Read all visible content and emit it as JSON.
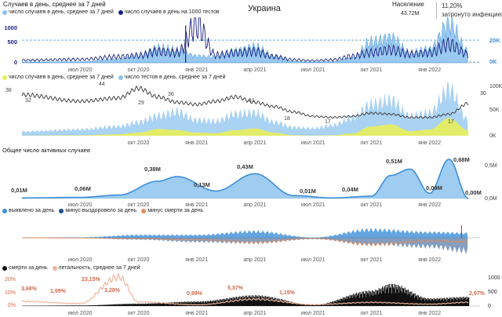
{
  "header": {
    "title": "Случаев в день, среднее за 7 дней",
    "country": "Украина",
    "population_label": "Население",
    "population_value": "43.72M",
    "infected_percent": "11,20%",
    "infected_label": "затронуто инфекцией"
  },
  "legends": {
    "chart1": [
      "число случаев в день, среднее за 7 дней",
      "число случаев в день на 1000 тестов"
    ],
    "chart2": [
      "число случаев в день, среднее за 7 дней",
      "число тестов в день, среднее за 7 дней"
    ],
    "chart3_title": "Общее число активных случаев",
    "chart4": [
      "выявлено за день",
      "минус выздоровело за день",
      "минус смерти за день"
    ],
    "chart5": [
      "смерти за день",
      "летальность, среднее за 7 дней"
    ]
  },
  "colors": {
    "light_blue": "#8ec3ef",
    "medium_blue": "#3d8fd9",
    "dark_navy": "#1a237e",
    "dark_gray_line": "#333333",
    "yellow_green": "#e8ee5a",
    "orange": "#e58a5a",
    "peach": "#f0b59a",
    "dashed_blue": "#3d8fd9",
    "black": "#111111"
  },
  "chart_data": [
    {
      "type": "area",
      "title": "Случаев в день, среднее за 7 дней",
      "x_ticks": [
        "июл 2020",
        "окт 2020",
        "янв 2021",
        "апр 2021",
        "июл 2021",
        "окт 2021",
        "янв 2022"
      ],
      "left_axis_ticks": [
        "1000",
        "500",
        "0"
      ],
      "right_axis_ticks": [
        "20K",
        "0K"
      ],
      "series": [
        {
          "name": "число случаев в день, среднее за 7 дней",
          "x": [
            "апр 2020",
            "июл 2020",
            "сен 2020",
            "окт 2020",
            "ноя 2020",
            "дек 2020",
            "янв 2021",
            "фев 2021",
            "мар 2021",
            "апр 2021",
            "май 2021",
            "июн 2021",
            "июл 2021",
            "авг 2021",
            "сен 2021",
            "окт 2021",
            "ноя 2021",
            "дек 2021",
            "янв 2022",
            "фев 2022",
            "мар 2022"
          ],
          "values": [
            400,
            900,
            3000,
            6000,
            13000,
            11000,
            6000,
            5000,
            11000,
            14000,
            6000,
            1000,
            500,
            1000,
            4000,
            18000,
            22000,
            9000,
            12000,
            34000,
            10000
          ]
        },
        {
          "name": "число случаев в день на 1000 тестов",
          "x": [
            "апр 2020",
            "июл 2020",
            "сен 2020",
            "окт 2020",
            "ноя 2020",
            "дек 2020",
            "янв 2021",
            "фев 2021",
            "мар 2021",
            "апр 2021",
            "май 2021",
            "июн 2021",
            "июл 2021",
            "авг 2021",
            "сен 2021",
            "окт 2021",
            "ноя 2021",
            "дек 2021",
            "янв 2022",
            "фев 2022",
            "мар 2022"
          ],
          "values": [
            60,
            80,
            140,
            170,
            260,
            230,
            880,
            180,
            230,
            260,
            140,
            70,
            50,
            70,
            150,
            240,
            300,
            200,
            230,
            430,
            200
          ]
        }
      ],
      "reference_lines": [
        {
          "value": 20000,
          "axis": "right"
        },
        {
          "value": 0,
          "axis": "right"
        }
      ]
    },
    {
      "type": "area",
      "title": "",
      "right_axis_ticks": [
        "100K",
        "50K",
        "0K"
      ],
      "x_ticks": [
        "окт 2020",
        "янв 2021",
        "апр 2021",
        "июл 2021",
        "окт 2021",
        "янв 2022"
      ],
      "annotations": [
        "38",
        "32",
        "44",
        "29",
        "36",
        "31",
        "18",
        "17",
        "17",
        "30"
      ],
      "series": [
        {
          "name": "число тестов в день, среднее за 7 дней",
          "x": [
            "апр 2020",
            "июл 2020",
            "сен 2020",
            "окт 2020",
            "ноя 2020",
            "дек 2020",
            "янв 2021",
            "фев 2021",
            "мар 2021",
            "апр 2021",
            "май 2021",
            "июн 2021",
            "июл 2021",
            "авг 2021",
            "сен 2021",
            "окт 2021",
            "ноя 2021",
            "дек 2021",
            "янв 2022",
            "фев 2022",
            "мар 2022"
          ],
          "values": [
            8000,
            12000,
            18000,
            26000,
            38000,
            46000,
            30000,
            28000,
            42000,
            44000,
            26000,
            16000,
            14000,
            20000,
            34000,
            60000,
            68000,
            38000,
            44000,
            90000,
            30000
          ]
        },
        {
          "name": "число случаев в день, среднее за 7 дней",
          "x": [
            "апр 2020",
            "июл 2020",
            "сен 2020",
            "окт 2020",
            "ноя 2020",
            "дек 2020",
            "янв 2021",
            "фев 2021",
            "мар 2021",
            "апр 2021",
            "май 2021",
            "июн 2021",
            "июл 2021",
            "авг 2021",
            "сен 2021",
            "окт 2021",
            "ноя 2021",
            "дек 2021",
            "янв 2022",
            "фев 2022",
            "мар 2022"
          ],
          "values": [
            400,
            900,
            3000,
            6000,
            13000,
            11000,
            6000,
            5000,
            11000,
            14000,
            6000,
            1000,
            500,
            1000,
            4000,
            18000,
            22000,
            9000,
            12000,
            34000,
            10000
          ]
        },
        {
          "name": "",
          "x": [
            "апр 2020",
            "июл 2020",
            "сен 2020",
            "окт 2020",
            "ноя 2020",
            "дек 2020",
            "янв 2021",
            "фев 2021",
            "мар 2021",
            "апр 2021",
            "май 2021",
            "июн 2021",
            "июл 2021",
            "авг 2021",
            "сен 2021",
            "окт 2021",
            "ноя 2021",
            "дек 2021",
            "янв 2022",
            "фев 2022",
            "мар 2022"
          ],
          "values": [
            38,
            32,
            35,
            44,
            36,
            31,
            29,
            32,
            36,
            31,
            27,
            22,
            18,
            17,
            18,
            21,
            20,
            17,
            17,
            20,
            30
          ]
        }
      ]
    },
    {
      "type": "area",
      "title": "Общее число активных случаев",
      "right_axis_ticks": [
        "0,5M",
        "0,0M"
      ],
      "x_ticks": [
        "июл 2020",
        "окт 2020",
        "янв 2021",
        "апр 2021",
        "июл 2021",
        "окт 2021",
        "янв 2022"
      ],
      "data_labels": [
        "0,01M",
        "0,06M",
        "0,38M",
        "0,13M",
        "0,43M",
        "0,01M",
        "0,04M",
        "0,51M",
        "0,09M",
        "0,68M",
        "0,00M"
      ],
      "series": [
        {
          "name": "Общее число активных случаев",
          "x": [
            "апр 2020",
            "июл 2020",
            "сен 2020",
            "ноя 2020",
            "дек 2020",
            "фев 2021",
            "апр 2021",
            "июн 2021",
            "авг 2021",
            "окт 2021",
            "ноя 2021",
            "дек 2021",
            "янв 2022",
            "фев 2022",
            "мар 2022"
          ],
          "values": [
            0.01,
            0.02,
            0.06,
            0.3,
            0.38,
            0.13,
            0.43,
            0.05,
            0.01,
            0.04,
            0.4,
            0.51,
            0.09,
            0.68,
            0.0
          ]
        }
      ]
    },
    {
      "type": "area",
      "title": "",
      "x_ticks": [
        "июл 2020",
        "окт 2020",
        "янв 2021",
        "апр 2021",
        "июл 2021",
        "окт 2021",
        "янв 2022"
      ],
      "series": [
        {
          "name": "выявлено за день",
          "x": [
            "апр 2020",
            "июл 2020",
            "окт 2020",
            "янв 2021",
            "апр 2021",
            "июл 2021",
            "окт 2021",
            "янв 2022",
            "мар 2022"
          ],
          "values": [
            400,
            900,
            6000,
            6000,
            14000,
            500,
            18000,
            12000,
            10000
          ]
        },
        {
          "name": "минус выздоровело за день",
          "x": [
            "апр 2020",
            "июл 2020",
            "окт 2020",
            "янв 2021",
            "апр 2021",
            "июл 2021",
            "окт 2021",
            "янв 2022",
            "мар 2022"
          ],
          "values": [
            -200,
            -800,
            -4000,
            -9000,
            -12000,
            -3000,
            -14000,
            -20000,
            -30000
          ]
        },
        {
          "name": "минус смерти за день",
          "x": [
            "апр 2020",
            "июл 2020",
            "окт 2020",
            "янв 2021",
            "апр 2021",
            "июл 2021",
            "окт 2021",
            "янв 2022",
            "мар 2022"
          ],
          "values": [
            -10,
            -20,
            -80,
            -150,
            -350,
            -40,
            -500,
            -250,
            -300
          ]
        }
      ]
    },
    {
      "type": "bar",
      "title": "",
      "left_axis_ticks": [
        "20%",
        "10%",
        "0%"
      ],
      "right_axis_ticks": [
        "1000",
        "500",
        "0"
      ],
      "x_ticks": [
        "июл 2020",
        "окт 2020",
        "янв 2021",
        "апр 2021",
        "июл 2021",
        "окт 2021",
        "янв 2022"
      ],
      "data_labels": [
        "3,68%",
        "1,99%",
        "23,15%",
        "3,28%",
        "0,99%",
        "5,37%",
        "1,15%",
        "2,97%"
      ],
      "series": [
        {
          "name": "смерти за день",
          "x": [
            "апр 2020",
            "июл 2020",
            "окт 2020",
            "янв 2021",
            "апр 2021",
            "июл 2021",
            "окт 2021",
            "ноя 2021",
            "янв 2022",
            "мар 2022"
          ],
          "values": [
            10,
            20,
            80,
            150,
            350,
            40,
            500,
            720,
            250,
            300
          ]
        },
        {
          "name": "летальность, среднее за 7 дней",
          "x": [
            "апр 2020",
            "июл 2020",
            "сен 2020",
            "окт 2020",
            "янв 2021",
            "апр 2021",
            "июл 2021",
            "окт 2021",
            "янв 2022",
            "мар 2022"
          ],
          "values": [
            3.68,
            1.99,
            23.15,
            3.28,
            0.99,
            5.37,
            1.15,
            2.9,
            1.5,
            2.97
          ]
        }
      ]
    }
  ]
}
